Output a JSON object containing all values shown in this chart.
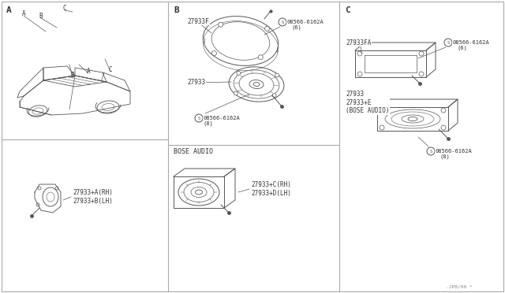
{
  "bg_color": "#ffffff",
  "line_color": "#555555",
  "text_color": "#333333",
  "section_labels": [
    "A",
    "B",
    "C"
  ],
  "part_numbers": {
    "A_speaker": "27933+A(RH)\n27933+B(LH)",
    "B_ring": "27933F",
    "B_screw1": "S08566-6162A\n(6)",
    "B_speaker": "27933",
    "B_screw2": "S08566-6162A\n(8)",
    "B_bose_label": "BOSE AUDIO",
    "B_bose_speaker": "27933+C(RH)\n27933+D(LH)",
    "C_ring": "27933FA",
    "C_screw1": "S08566-6162A\n(6)",
    "C_speaker": "27933\n27933+E\n(BOSE AUDIO)",
    "C_screw2": "S08566-6162A\n(8)"
  },
  "footer_text": ".JP8/00 *",
  "border_color": "#aaaaaa",
  "div_color": "#aaaaaa"
}
